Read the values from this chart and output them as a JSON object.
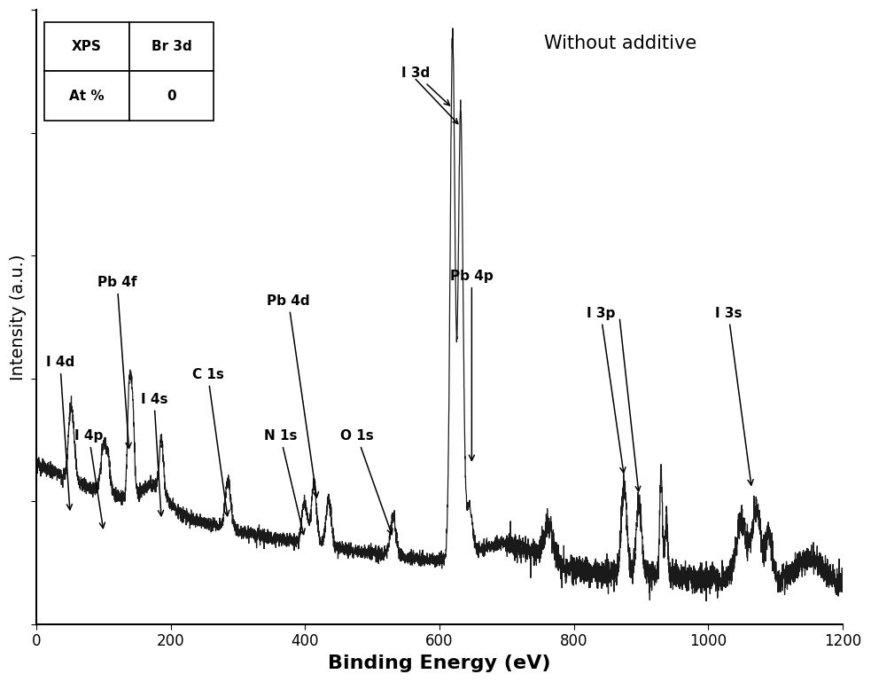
{
  "xlabel": "Binding Energy (eV)",
  "ylabel": "Intensity (a.u.)",
  "xlim": [
    0,
    1200
  ],
  "ylim": [
    0,
    1.0
  ],
  "annotation_text": "Without additive",
  "table_data": [
    [
      "XPS",
      "Br 3d"
    ],
    [
      "At %",
      "0"
    ]
  ],
  "line_color": "#1a1a1a",
  "background_color": "#ffffff",
  "xlabel_fontsize": 16,
  "ylabel_fontsize": 14,
  "annot_fontsize": 11
}
